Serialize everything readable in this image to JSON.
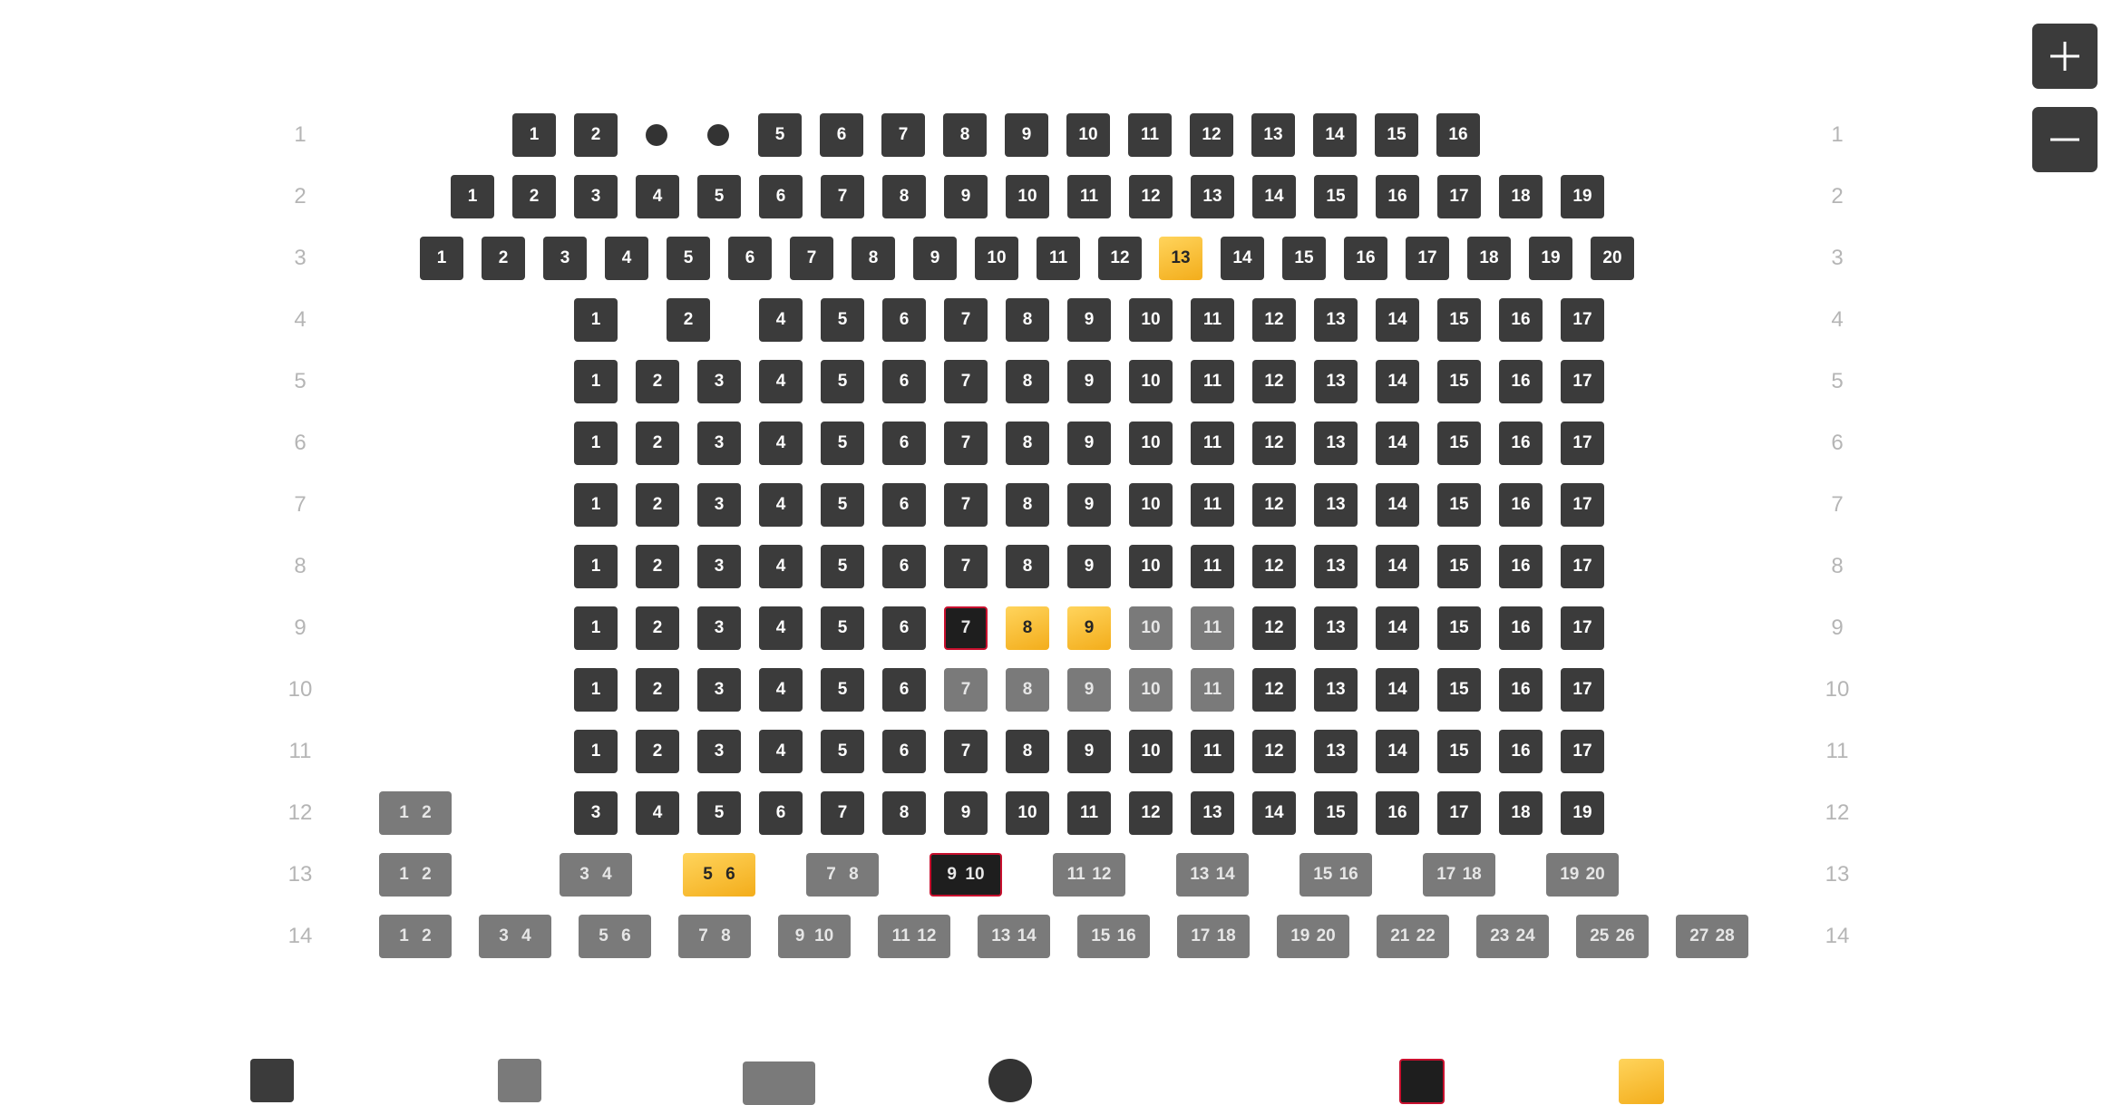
{
  "zoom_controls": {
    "zoom_in_icon": "plus-icon",
    "zoom_out_icon": "minus-icon"
  },
  "colors": {
    "available": "#3b3b3b",
    "unavailable": "#7a7a7a",
    "selected": "#f7b52a",
    "hold_border": "#c8102e",
    "row_label": "#b5b5b5"
  },
  "rows": [
    {
      "label": "1",
      "seats": [
        {
          "n": "1",
          "s": "available"
        },
        {
          "n": "2",
          "s": "available"
        },
        {
          "n": "",
          "s": "dot"
        },
        {
          "n": "",
          "s": "dot"
        },
        {
          "n": "5",
          "s": "available"
        },
        {
          "n": "6",
          "s": "available"
        },
        {
          "n": "7",
          "s": "available"
        },
        {
          "n": "8",
          "s": "available"
        },
        {
          "n": "9",
          "s": "available"
        },
        {
          "n": "10",
          "s": "available"
        },
        {
          "n": "11",
          "s": "available"
        },
        {
          "n": "12",
          "s": "available"
        },
        {
          "n": "13",
          "s": "available"
        },
        {
          "n": "14",
          "s": "available"
        },
        {
          "n": "15",
          "s": "available"
        },
        {
          "n": "16",
          "s": "available"
        }
      ]
    },
    {
      "label": "2",
      "seats": [
        {
          "n": "1",
          "s": "available"
        },
        {
          "n": "2",
          "s": "available"
        },
        {
          "n": "3",
          "s": "available"
        },
        {
          "n": "4",
          "s": "available"
        },
        {
          "n": "5",
          "s": "available"
        },
        {
          "n": "6",
          "s": "available"
        },
        {
          "n": "7",
          "s": "available"
        },
        {
          "n": "8",
          "s": "available"
        },
        {
          "n": "9",
          "s": "available"
        },
        {
          "n": "10",
          "s": "available"
        },
        {
          "n": "11",
          "s": "available"
        },
        {
          "n": "12",
          "s": "available"
        },
        {
          "n": "13",
          "s": "available"
        },
        {
          "n": "14",
          "s": "available"
        },
        {
          "n": "15",
          "s": "available"
        },
        {
          "n": "16",
          "s": "available"
        },
        {
          "n": "17",
          "s": "available"
        },
        {
          "n": "18",
          "s": "available"
        },
        {
          "n": "19",
          "s": "available"
        }
      ]
    },
    {
      "label": "3",
      "seats": [
        {
          "n": "1",
          "s": "available"
        },
        {
          "n": "2",
          "s": "available"
        },
        {
          "n": "3",
          "s": "available"
        },
        {
          "n": "4",
          "s": "available"
        },
        {
          "n": "5",
          "s": "available"
        },
        {
          "n": "6",
          "s": "available"
        },
        {
          "n": "7",
          "s": "available"
        },
        {
          "n": "8",
          "s": "available"
        },
        {
          "n": "9",
          "s": "available"
        },
        {
          "n": "10",
          "s": "available"
        },
        {
          "n": "11",
          "s": "available"
        },
        {
          "n": "12",
          "s": "available"
        },
        {
          "n": "13",
          "s": "selected"
        },
        {
          "n": "14",
          "s": "available"
        },
        {
          "n": "15",
          "s": "available"
        },
        {
          "n": "16",
          "s": "available"
        },
        {
          "n": "17",
          "s": "available"
        },
        {
          "n": "18",
          "s": "available"
        },
        {
          "n": "19",
          "s": "available"
        },
        {
          "n": "20",
          "s": "available"
        }
      ]
    },
    {
      "label": "4",
      "seats": [
        {
          "n": "1",
          "s": "available"
        },
        {
          "n": "2",
          "s": "available"
        },
        {
          "n": "4",
          "s": "available"
        },
        {
          "n": "5",
          "s": "available"
        },
        {
          "n": "6",
          "s": "available"
        },
        {
          "n": "7",
          "s": "available"
        },
        {
          "n": "8",
          "s": "available"
        },
        {
          "n": "9",
          "s": "available"
        },
        {
          "n": "10",
          "s": "available"
        },
        {
          "n": "11",
          "s": "available"
        },
        {
          "n": "12",
          "s": "available"
        },
        {
          "n": "13",
          "s": "available"
        },
        {
          "n": "14",
          "s": "available"
        },
        {
          "n": "15",
          "s": "available"
        },
        {
          "n": "16",
          "s": "available"
        },
        {
          "n": "17",
          "s": "available"
        }
      ]
    },
    {
      "label": "5",
      "seats": [
        {
          "n": "1",
          "s": "available"
        },
        {
          "n": "2",
          "s": "available"
        },
        {
          "n": "3",
          "s": "available"
        },
        {
          "n": "4",
          "s": "available"
        },
        {
          "n": "5",
          "s": "available"
        },
        {
          "n": "6",
          "s": "available"
        },
        {
          "n": "7",
          "s": "available"
        },
        {
          "n": "8",
          "s": "available"
        },
        {
          "n": "9",
          "s": "available"
        },
        {
          "n": "10",
          "s": "available"
        },
        {
          "n": "11",
          "s": "available"
        },
        {
          "n": "12",
          "s": "available"
        },
        {
          "n": "13",
          "s": "available"
        },
        {
          "n": "14",
          "s": "available"
        },
        {
          "n": "15",
          "s": "available"
        },
        {
          "n": "16",
          "s": "available"
        },
        {
          "n": "17",
          "s": "available"
        }
      ]
    },
    {
      "label": "6",
      "seats": [
        {
          "n": "1",
          "s": "available"
        },
        {
          "n": "2",
          "s": "available"
        },
        {
          "n": "3",
          "s": "available"
        },
        {
          "n": "4",
          "s": "available"
        },
        {
          "n": "5",
          "s": "available"
        },
        {
          "n": "6",
          "s": "available"
        },
        {
          "n": "7",
          "s": "available"
        },
        {
          "n": "8",
          "s": "available"
        },
        {
          "n": "9",
          "s": "available"
        },
        {
          "n": "10",
          "s": "available"
        },
        {
          "n": "11",
          "s": "available"
        },
        {
          "n": "12",
          "s": "available"
        },
        {
          "n": "13",
          "s": "available"
        },
        {
          "n": "14",
          "s": "available"
        },
        {
          "n": "15",
          "s": "available"
        },
        {
          "n": "16",
          "s": "available"
        },
        {
          "n": "17",
          "s": "available"
        }
      ]
    },
    {
      "label": "7",
      "seats": [
        {
          "n": "1",
          "s": "available"
        },
        {
          "n": "2",
          "s": "available"
        },
        {
          "n": "3",
          "s": "available"
        },
        {
          "n": "4",
          "s": "available"
        },
        {
          "n": "5",
          "s": "available"
        },
        {
          "n": "6",
          "s": "available"
        },
        {
          "n": "7",
          "s": "available"
        },
        {
          "n": "8",
          "s": "available"
        },
        {
          "n": "9",
          "s": "available"
        },
        {
          "n": "10",
          "s": "available"
        },
        {
          "n": "11",
          "s": "available"
        },
        {
          "n": "12",
          "s": "available"
        },
        {
          "n": "13",
          "s": "available"
        },
        {
          "n": "14",
          "s": "available"
        },
        {
          "n": "15",
          "s": "available"
        },
        {
          "n": "16",
          "s": "available"
        },
        {
          "n": "17",
          "s": "available"
        }
      ]
    },
    {
      "label": "8",
      "seats": [
        {
          "n": "1",
          "s": "available"
        },
        {
          "n": "2",
          "s": "available"
        },
        {
          "n": "3",
          "s": "available"
        },
        {
          "n": "4",
          "s": "available"
        },
        {
          "n": "5",
          "s": "available"
        },
        {
          "n": "6",
          "s": "available"
        },
        {
          "n": "7",
          "s": "available"
        },
        {
          "n": "8",
          "s": "available"
        },
        {
          "n": "9",
          "s": "available"
        },
        {
          "n": "10",
          "s": "available"
        },
        {
          "n": "11",
          "s": "available"
        },
        {
          "n": "12",
          "s": "available"
        },
        {
          "n": "13",
          "s": "available"
        },
        {
          "n": "14",
          "s": "available"
        },
        {
          "n": "15",
          "s": "available"
        },
        {
          "n": "16",
          "s": "available"
        },
        {
          "n": "17",
          "s": "available"
        }
      ]
    },
    {
      "label": "9",
      "seats": [
        {
          "n": "1",
          "s": "available"
        },
        {
          "n": "2",
          "s": "available"
        },
        {
          "n": "3",
          "s": "available"
        },
        {
          "n": "4",
          "s": "available"
        },
        {
          "n": "5",
          "s": "available"
        },
        {
          "n": "6",
          "s": "available"
        },
        {
          "n": "7",
          "s": "hold"
        },
        {
          "n": "8",
          "s": "selected"
        },
        {
          "n": "9",
          "s": "selected"
        },
        {
          "n": "10",
          "s": "unavailable"
        },
        {
          "n": "11",
          "s": "unavailable"
        },
        {
          "n": "12",
          "s": "available"
        },
        {
          "n": "13",
          "s": "available"
        },
        {
          "n": "14",
          "s": "available"
        },
        {
          "n": "15",
          "s": "available"
        },
        {
          "n": "16",
          "s": "available"
        },
        {
          "n": "17",
          "s": "available"
        }
      ]
    },
    {
      "label": "10",
      "seats": [
        {
          "n": "1",
          "s": "available"
        },
        {
          "n": "2",
          "s": "available"
        },
        {
          "n": "3",
          "s": "available"
        },
        {
          "n": "4",
          "s": "available"
        },
        {
          "n": "5",
          "s": "available"
        },
        {
          "n": "6",
          "s": "available"
        },
        {
          "n": "7",
          "s": "unavailable"
        },
        {
          "n": "8",
          "s": "unavailable"
        },
        {
          "n": "9",
          "s": "unavailable"
        },
        {
          "n": "10",
          "s": "unavailable"
        },
        {
          "n": "11",
          "s": "unavailable"
        },
        {
          "n": "12",
          "s": "available"
        },
        {
          "n": "13",
          "s": "available"
        },
        {
          "n": "14",
          "s": "available"
        },
        {
          "n": "15",
          "s": "available"
        },
        {
          "n": "16",
          "s": "available"
        },
        {
          "n": "17",
          "s": "available"
        }
      ]
    },
    {
      "label": "11",
      "seats": [
        {
          "n": "1",
          "s": "available"
        },
        {
          "n": "2",
          "s": "available"
        },
        {
          "n": "3",
          "s": "available"
        },
        {
          "n": "4",
          "s": "available"
        },
        {
          "n": "5",
          "s": "available"
        },
        {
          "n": "6",
          "s": "available"
        },
        {
          "n": "7",
          "s": "available"
        },
        {
          "n": "8",
          "s": "available"
        },
        {
          "n": "9",
          "s": "available"
        },
        {
          "n": "10",
          "s": "available"
        },
        {
          "n": "11",
          "s": "available"
        },
        {
          "n": "12",
          "s": "available"
        },
        {
          "n": "13",
          "s": "available"
        },
        {
          "n": "14",
          "s": "available"
        },
        {
          "n": "15",
          "s": "available"
        },
        {
          "n": "16",
          "s": "available"
        },
        {
          "n": "17",
          "s": "available"
        }
      ]
    },
    {
      "label": "12",
      "seats": [
        {
          "n": "1  2",
          "s": "unavailable",
          "pair": true
        },
        {
          "n": "3",
          "s": "available"
        },
        {
          "n": "4",
          "s": "available"
        },
        {
          "n": "5",
          "s": "available"
        },
        {
          "n": "6",
          "s": "available"
        },
        {
          "n": "7",
          "s": "available"
        },
        {
          "n": "8",
          "s": "available"
        },
        {
          "n": "9",
          "s": "available"
        },
        {
          "n": "10",
          "s": "available"
        },
        {
          "n": "11",
          "s": "available"
        },
        {
          "n": "12",
          "s": "available"
        },
        {
          "n": "13",
          "s": "available"
        },
        {
          "n": "14",
          "s": "available"
        },
        {
          "n": "15",
          "s": "available"
        },
        {
          "n": "16",
          "s": "available"
        },
        {
          "n": "17",
          "s": "available"
        },
        {
          "n": "18",
          "s": "available"
        },
        {
          "n": "19",
          "s": "available"
        }
      ]
    },
    {
      "label": "13",
      "seats": [
        {
          "n": "1  2",
          "s": "unavailable",
          "pair": true
        },
        {
          "n": "3  4",
          "s": "unavailable",
          "pair": true
        },
        {
          "n": "5  6",
          "s": "selected",
          "pair": true
        },
        {
          "n": "7  8",
          "s": "unavailable",
          "pair": true
        },
        {
          "n": "9  10",
          "s": "hold",
          "pair": true
        },
        {
          "n": "11  12",
          "s": "unavailable",
          "pair": true
        },
        {
          "n": "13  14",
          "s": "unavailable",
          "pair": true
        },
        {
          "n": "15  16",
          "s": "unavailable",
          "pair": true
        },
        {
          "n": "17  18",
          "s": "unavailable",
          "pair": true
        },
        {
          "n": "19  20",
          "s": "unavailable",
          "pair": true
        }
      ]
    },
    {
      "label": "14",
      "seats": [
        {
          "n": "1  2",
          "s": "unavailable",
          "pair": true
        },
        {
          "n": "3  4",
          "s": "unavailable",
          "pair": true
        },
        {
          "n": "5  6",
          "s": "unavailable",
          "pair": true
        },
        {
          "n": "7  8",
          "s": "unavailable",
          "pair": true
        },
        {
          "n": "9  10",
          "s": "unavailable",
          "pair": true
        },
        {
          "n": "11  12",
          "s": "unavailable",
          "pair": true
        },
        {
          "n": "13  14",
          "s": "unavailable",
          "pair": true
        },
        {
          "n": "15  16",
          "s": "unavailable",
          "pair": true
        },
        {
          "n": "17  18",
          "s": "unavailable",
          "pair": true
        },
        {
          "n": "19  20",
          "s": "unavailable",
          "pair": true
        },
        {
          "n": "21  22",
          "s": "unavailable",
          "pair": true
        },
        {
          "n": "23  24",
          "s": "unavailable",
          "pair": true
        },
        {
          "n": "25  26",
          "s": "unavailable",
          "pair": true
        },
        {
          "n": "27  28",
          "s": "unavailable",
          "pair": true
        }
      ]
    }
  ],
  "legend": [
    {
      "kind": "available"
    },
    {
      "kind": "unavailable"
    },
    {
      "kind": "unavailable-pair"
    },
    {
      "kind": "dot"
    },
    {
      "kind": "hold"
    },
    {
      "kind": "selected"
    }
  ]
}
